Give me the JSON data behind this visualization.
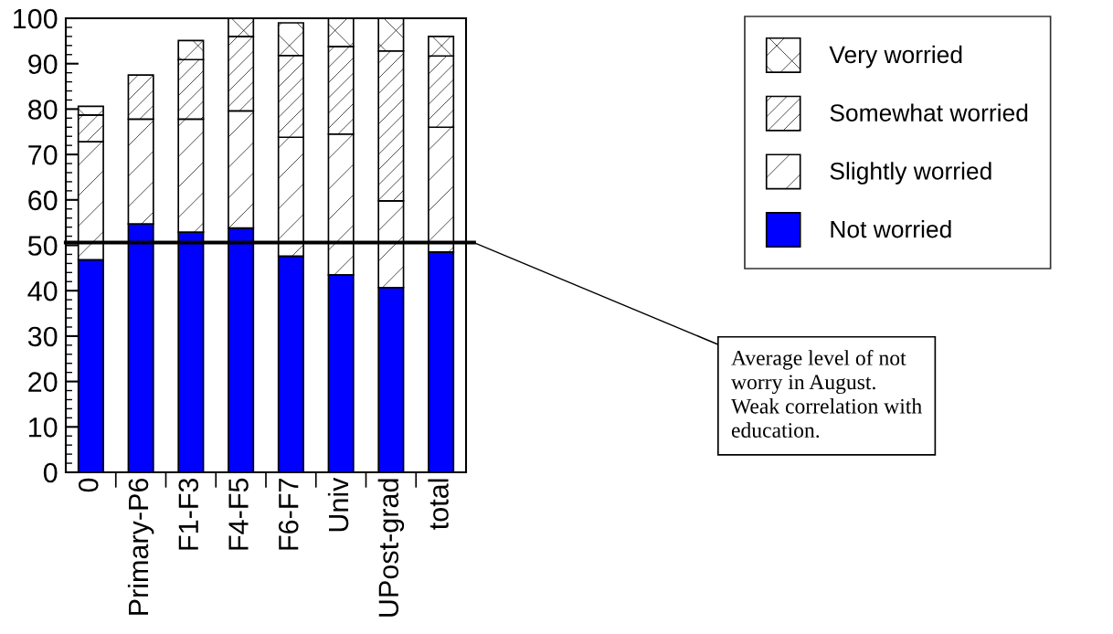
{
  "chart_data": {
    "type": "bar",
    "stacked": true,
    "categories": [
      "0",
      "Primary-P6",
      "F1-F3",
      "F4-F5",
      "F6-F7",
      "Univ",
      "UPost-grad",
      "total"
    ],
    "series": [
      {
        "name": "Not worried",
        "color": "#0000ff",
        "values": [
          46.8,
          54.7,
          52.9,
          53.8,
          47.6,
          43.5,
          40.7,
          48.5
        ]
      },
      {
        "name": "Slightly worried",
        "color": "#000000",
        "values": [
          26.0,
          23.1,
          24.9,
          25.8,
          26.2,
          31.0,
          19.1,
          27.5
        ]
      },
      {
        "name": "Somewhat worried",
        "color": "#000000",
        "values": [
          5.9,
          9.7,
          13.1,
          16.4,
          18.0,
          19.3,
          33.0,
          15.7
        ]
      },
      {
        "name": "Very worried",
        "color": "#000000",
        "values": [
          1.9,
          null,
          4.2,
          4.0,
          7.2,
          6.2,
          7.2,
          4.3
        ]
      }
    ],
    "ylim": [
      0,
      100
    ],
    "yticks": [
      0,
      10,
      20,
      30,
      40,
      50,
      60,
      70,
      80,
      90,
      100
    ],
    "ref_lines": [
      {
        "axis": "y",
        "value": 50.6,
        "label": "Average level of not\nworry in August.\nWeak correlation with\neducation.",
        "color": "#000000"
      }
    ],
    "legend": "right",
    "grid": false
  }
}
